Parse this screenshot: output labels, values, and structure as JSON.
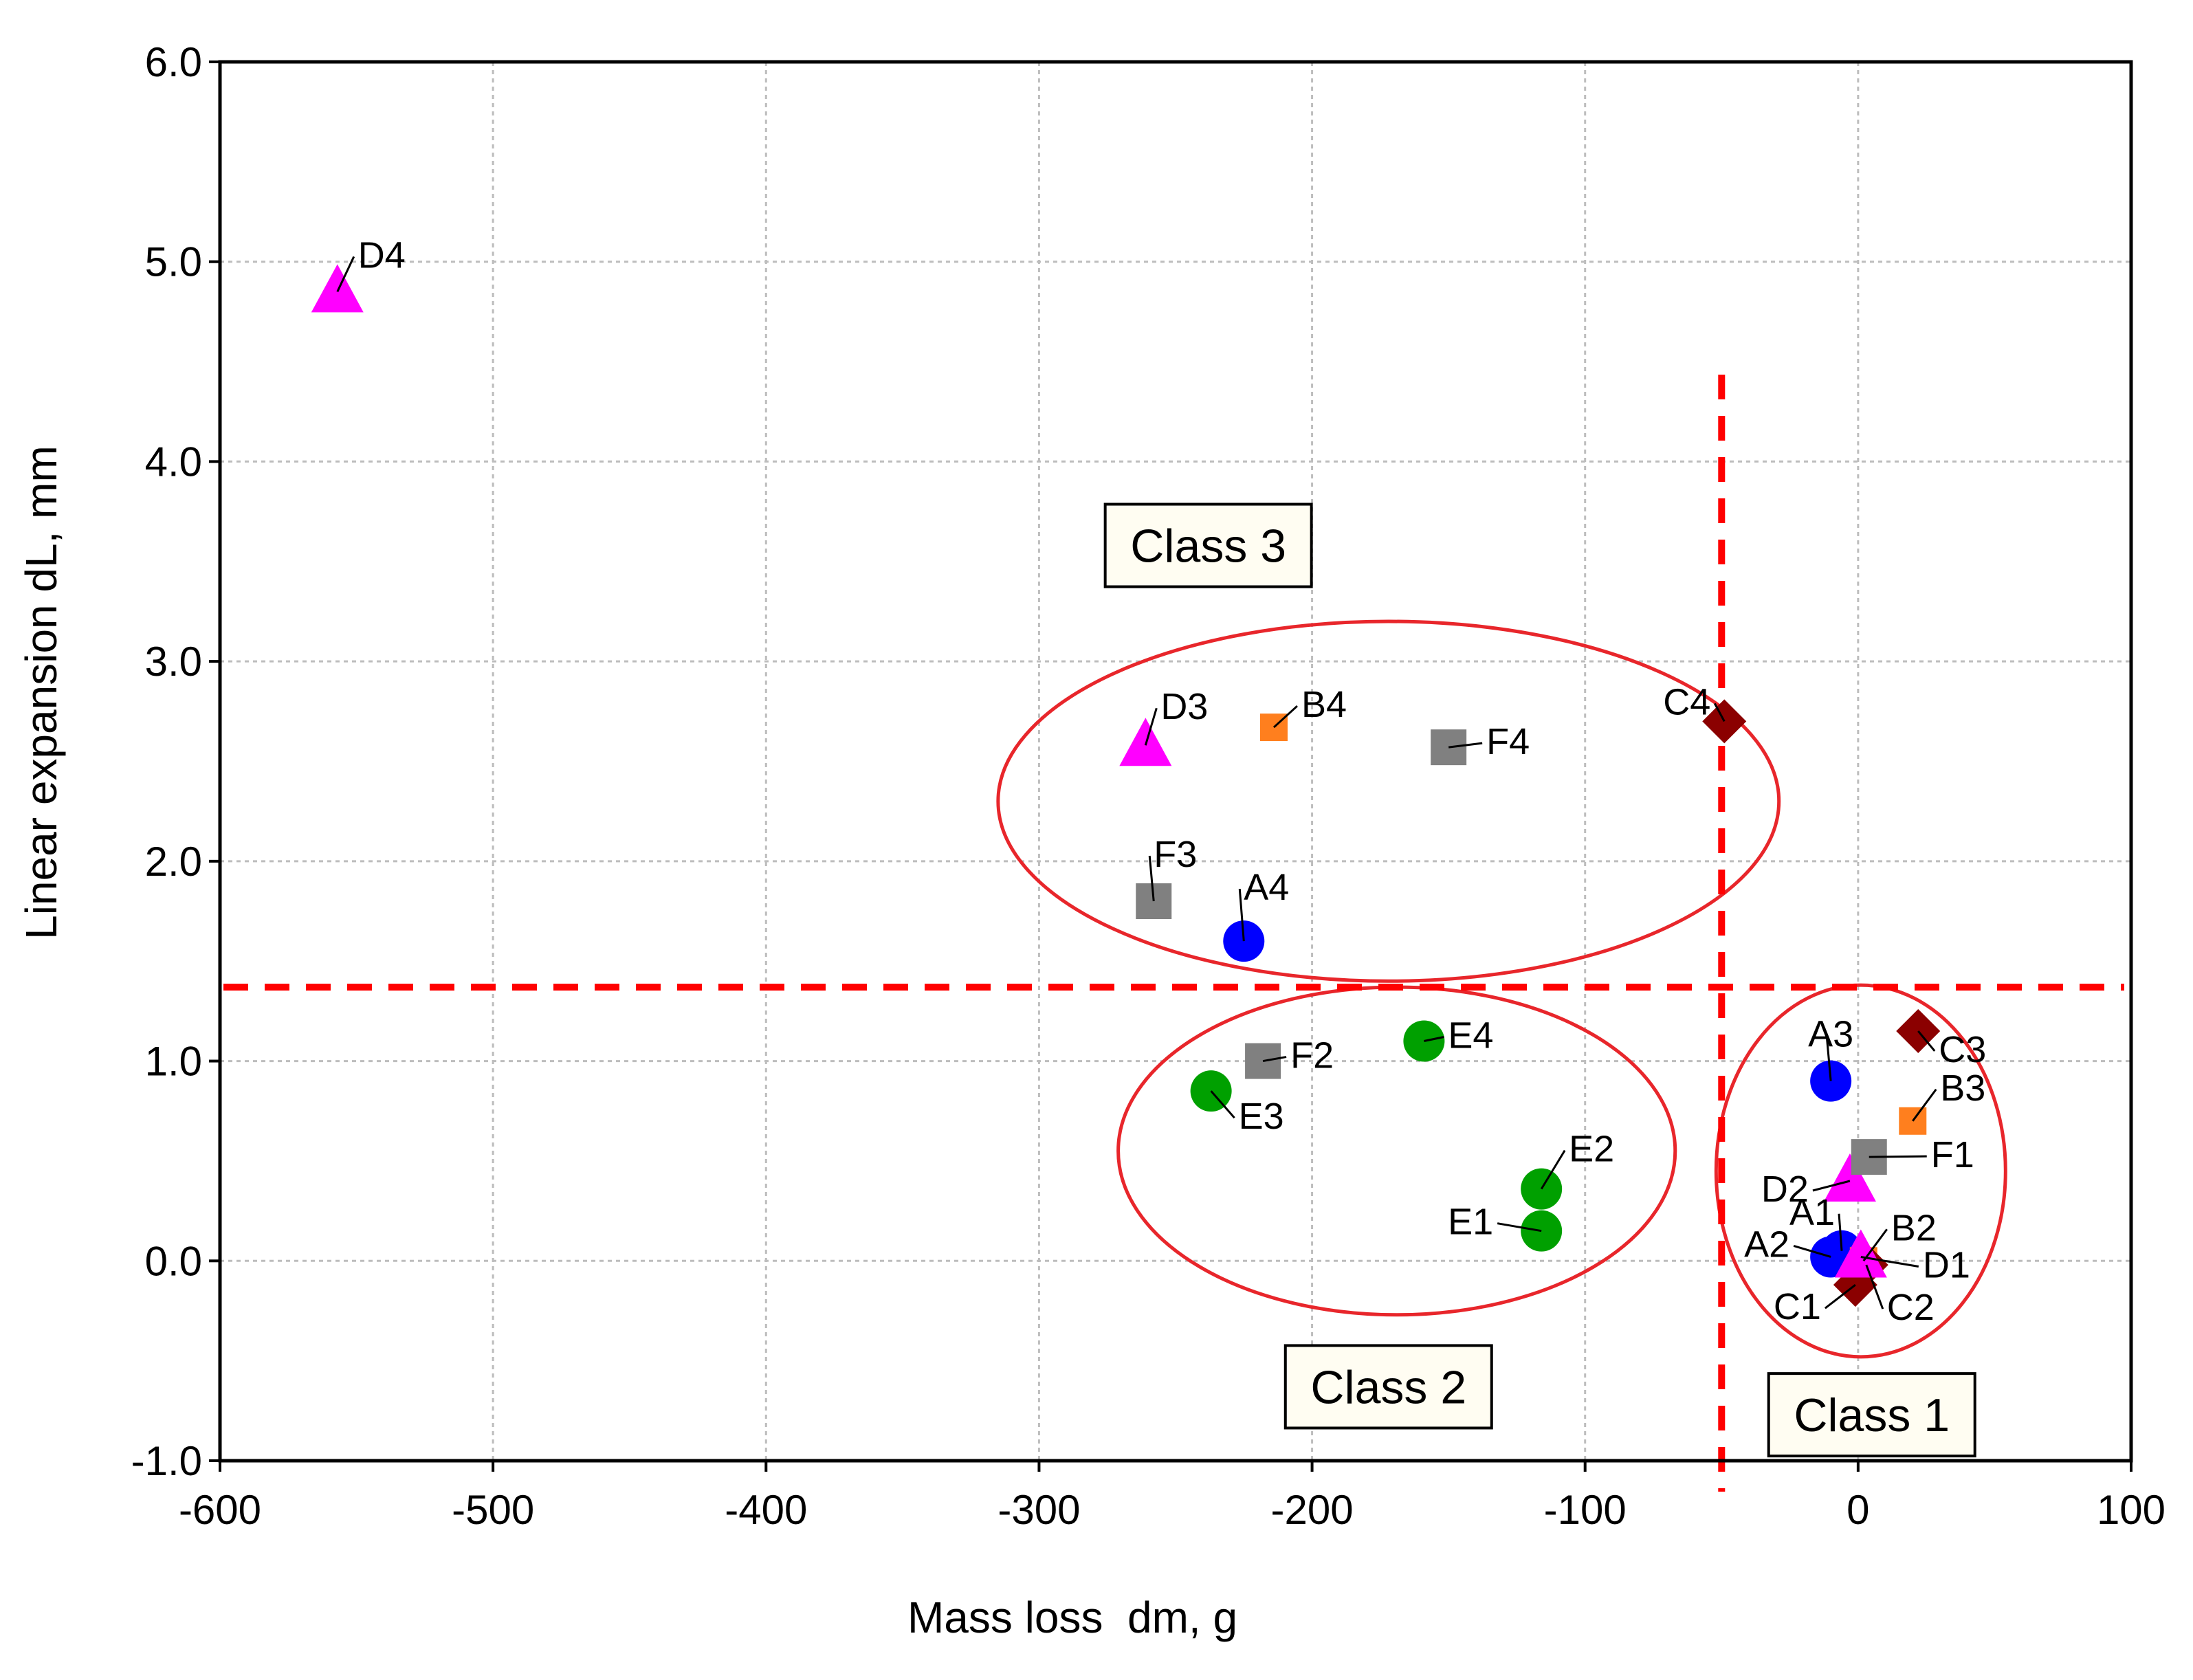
{
  "chart_data": {
    "type": "scatter",
    "title": "",
    "xlabel": "Mass loss  dm, g",
    "ylabel": "Linear expansion dL, mm",
    "xlim": [
      -600,
      100
    ],
    "ylim": [
      -1.0,
      6.0
    ],
    "xticks": [
      "-600",
      "-500",
      "-400",
      "-300",
      "-200",
      "-100",
      "0",
      "100"
    ],
    "yticks": [
      "-1.0",
      "0.0",
      "1.0",
      "2.0",
      "3.0",
      "4.0",
      "5.0",
      "6.0"
    ],
    "grid": true,
    "series": [
      {
        "name": "A",
        "color": "#0000ff",
        "marker": "circle",
        "points": [
          {
            "label": "A1",
            "x": -6,
            "y": 0.05
          },
          {
            "label": "A2",
            "x": -10,
            "y": 0.02
          },
          {
            "label": "A3",
            "x": -10,
            "y": 0.9
          },
          {
            "label": "A4",
            "x": -225,
            "y": 1.6
          }
        ]
      },
      {
        "name": "B",
        "color": "#ff7f1e",
        "marker": "square-small",
        "points": [
          {
            "label": "B2",
            "x": 2,
            "y": 0.0
          },
          {
            "label": "B3",
            "x": 20,
            "y": 0.7
          },
          {
            "label": "B4",
            "x": -214,
            "y": 2.67
          }
        ]
      },
      {
        "name": "C",
        "color": "#8b0000",
        "marker": "diamond",
        "points": [
          {
            "label": "C1",
            "x": -1,
            "y": -0.12
          },
          {
            "label": "C2",
            "x": 3,
            "y": -0.02
          },
          {
            "label": "C3",
            "x": 22,
            "y": 1.15
          },
          {
            "label": "C4",
            "x": -49,
            "y": 2.7
          }
        ]
      },
      {
        "name": "D",
        "color": "#ff00ff",
        "marker": "triangle",
        "points": [
          {
            "label": "D1",
            "x": 1,
            "y": 0.02
          },
          {
            "label": "D2",
            "x": -3,
            "y": 0.4
          },
          {
            "label": "D3",
            "x": -261,
            "y": 2.58
          },
          {
            "label": "D4",
            "x": -557,
            "y": 4.85
          }
        ]
      },
      {
        "name": "E",
        "color": "#00a000",
        "marker": "circle",
        "points": [
          {
            "label": "E1",
            "x": -116,
            "y": 0.15
          },
          {
            "label": "E2",
            "x": -116,
            "y": 0.36
          },
          {
            "label": "E3",
            "x": -237,
            "y": 0.85
          },
          {
            "label": "E4",
            "x": -159,
            "y": 1.1
          }
        ]
      },
      {
        "name": "F",
        "color": "#808080",
        "marker": "square",
        "points": [
          {
            "label": "F1",
            "x": 4,
            "y": 0.52
          },
          {
            "label": "F2",
            "x": -218,
            "y": 1.0
          },
          {
            "label": "F3",
            "x": -258,
            "y": 1.8
          },
          {
            "label": "F4",
            "x": -150,
            "y": 2.57
          }
        ]
      }
    ],
    "reference_lines": [
      {
        "orientation": "vertical",
        "value": -50,
        "color": "#ff0000",
        "style": "dashed"
      },
      {
        "orientation": "horizontal",
        "value": 1.37,
        "color": "#ff0000",
        "style": "dashed"
      }
    ],
    "class_annotations": [
      {
        "label": "Class 3",
        "x": -238,
        "y": 3.58
      },
      {
        "label": "Class 2",
        "x": -172,
        "y": -0.63
      },
      {
        "label": "Class 1",
        "x": 5,
        "y": -0.77
      }
    ],
    "ellipses": [
      {
        "class": "Class 3",
        "cx": -172,
        "cy": 2.3,
        "rx": 143,
        "ry": 0.9
      },
      {
        "class": "Class 2",
        "cx": -169,
        "cy": 0.55,
        "rx": 102,
        "ry": 0.82
      },
      {
        "class": "Class 1",
        "cx": 1,
        "cy": 0.45,
        "rx": 53,
        "ry": 0.93
      }
    ]
  }
}
